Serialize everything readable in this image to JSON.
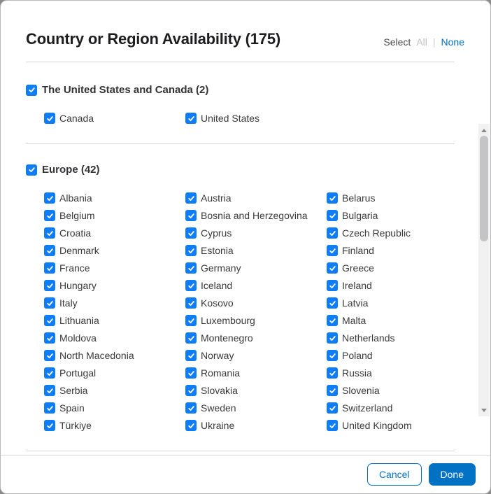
{
  "dialog": {
    "title": "Country or Region Availability (175)",
    "select": {
      "label": "Select",
      "all_label": "All",
      "separator": "|",
      "none_label": "None"
    }
  },
  "sections": [
    {
      "label": "The United States and Canada (2)",
      "checked": true,
      "countries": [
        "Canada",
        "United States"
      ]
    },
    {
      "label": "Europe (42)",
      "checked": true,
      "countries": [
        "Albania",
        "Austria",
        "Belarus",
        "Belgium",
        "Bosnia and Herzegovina",
        "Bulgaria",
        "Croatia",
        "Cyprus",
        "Czech Republic",
        "Denmark",
        "Estonia",
        "Finland",
        "France",
        "Germany",
        "Greece",
        "Hungary",
        "Iceland",
        "Ireland",
        "Italy",
        "Kosovo",
        "Latvia",
        "Lithuania",
        "Luxembourg",
        "Malta",
        "Moldova",
        "Montenegro",
        "Netherlands",
        "North Macedonia",
        "Norway",
        "Poland",
        "Portugal",
        "Romania",
        "Russia",
        "Serbia",
        "Slovakia",
        "Slovenia",
        "Spain",
        "Sweden",
        "Switzerland",
        "Türkiye",
        "Ukraine",
        "United Kingdom"
      ]
    }
  ],
  "footer": {
    "cancel_label": "Cancel",
    "done_label": "Done"
  },
  "colors": {
    "checkbox_blue": "#0e7df7",
    "link_blue": "#0070c9",
    "done_button_blue": "#0071c3",
    "title_color": "#1d1d1f",
    "disabled_gray": "#bfbfc2"
  }
}
